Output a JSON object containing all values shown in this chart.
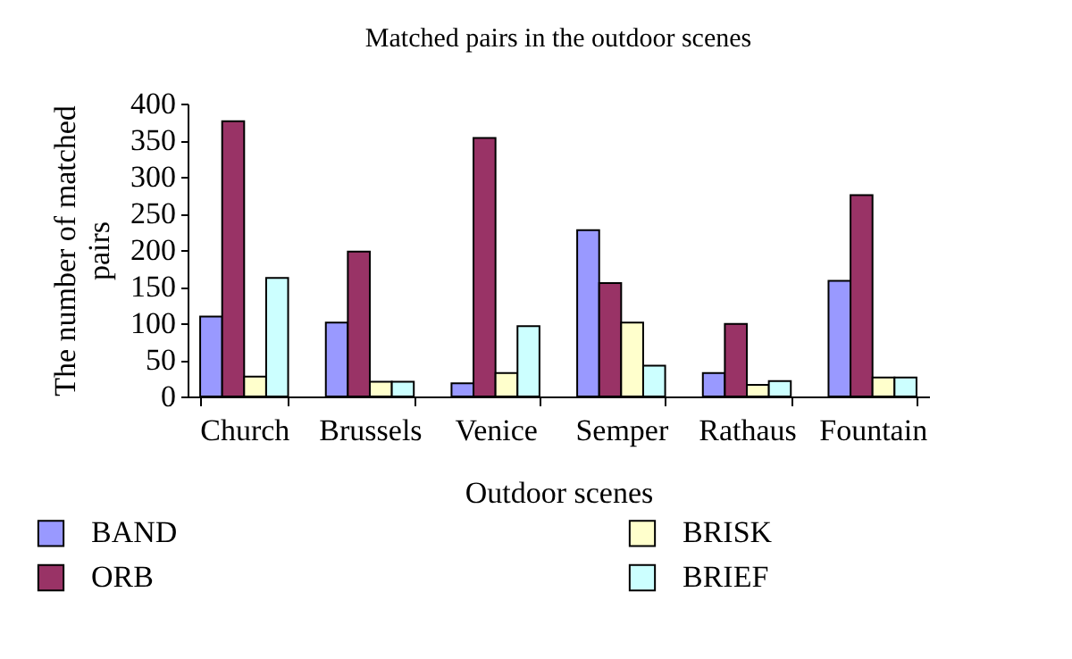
{
  "chart_data": {
    "type": "bar",
    "title": "Matched pairs in the outdoor scenes",
    "xlabel": "Outdoor scenes",
    "ylabel": "The number of matched pairs",
    "categories": [
      "Church",
      "Brussels",
      "Venice",
      "Semper",
      "Rathaus",
      "Fountain"
    ],
    "series": [
      {
        "name": "BAND",
        "color": "#9999ff",
        "values": [
          109,
          101,
          18,
          227,
          32,
          158
        ]
      },
      {
        "name": "ORB",
        "color": "#993366",
        "values": [
          376,
          198,
          353,
          155,
          99,
          275
        ]
      },
      {
        "name": "BRISK",
        "color": "#ffffcc",
        "values": [
          27,
          20,
          32,
          101,
          16,
          26
        ]
      },
      {
        "name": "BRIEF",
        "color": "#ccffff",
        "values": [
          162,
          20,
          96,
          42,
          21,
          26
        ]
      }
    ],
    "ylim": [
      0,
      400
    ],
    "yticks": [
      0,
      50,
      100,
      150,
      200,
      250,
      300,
      350,
      400
    ],
    "grid": false,
    "legend": "bottom"
  }
}
